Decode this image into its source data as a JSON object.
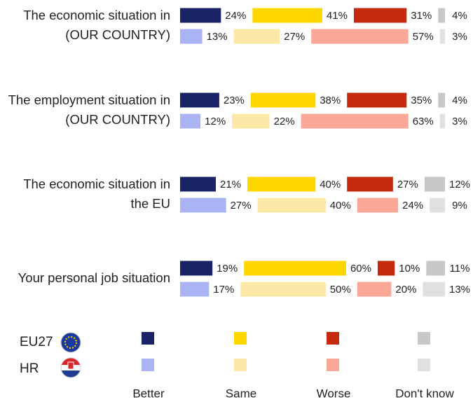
{
  "chart_data": {
    "type": "bar",
    "stacked": true,
    "categories": [
      [
        "The economic situation in",
        "(OUR COUNTRY)"
      ],
      [
        "The employment situation in",
        "(OUR COUNTRY)"
      ],
      [
        "The economic situation in",
        "the EU"
      ],
      [
        "Your personal job situation"
      ]
    ],
    "segments": [
      "Better",
      "Same",
      "Worse",
      "Don't know"
    ],
    "xlim": [
      0,
      100
    ],
    "series": [
      {
        "name": "EU27",
        "colors": [
          "#1a2366",
          "#ffd700",
          "#c62a0e",
          "#c8c8c8"
        ],
        "values": [
          [
            24,
            23,
            21,
            19
          ],
          [
            41,
            38,
            40,
            60
          ],
          [
            31,
            35,
            27,
            10
          ],
          [
            4,
            4,
            12,
            11
          ]
        ],
        "value_labels": [
          [
            "24%",
            "23%",
            "21%",
            "19%"
          ],
          [
            "41%",
            "38%",
            "40%",
            "60%"
          ],
          [
            "31%",
            "35%",
            "27%",
            "10%"
          ],
          [
            "4%",
            "4%",
            "12%",
            "11%"
          ]
        ]
      },
      {
        "name": "HR",
        "colors": [
          "#aab4f5",
          "#fde8a8",
          "#f9a898",
          "#e0e0e0"
        ],
        "values": [
          [
            13,
            12,
            27,
            17
          ],
          [
            27,
            22,
            40,
            50
          ],
          [
            57,
            63,
            24,
            20
          ],
          [
            3,
            3,
            9,
            13
          ]
        ],
        "value_labels": [
          [
            "13%",
            "12%",
            "27%",
            "17%"
          ],
          [
            "27%",
            "22%",
            "40%",
            "50%"
          ],
          [
            "57%",
            "63%",
            "24%",
            "20%"
          ],
          [
            "3%",
            "3%",
            "9%",
            "13%"
          ]
        ]
      }
    ]
  }
}
